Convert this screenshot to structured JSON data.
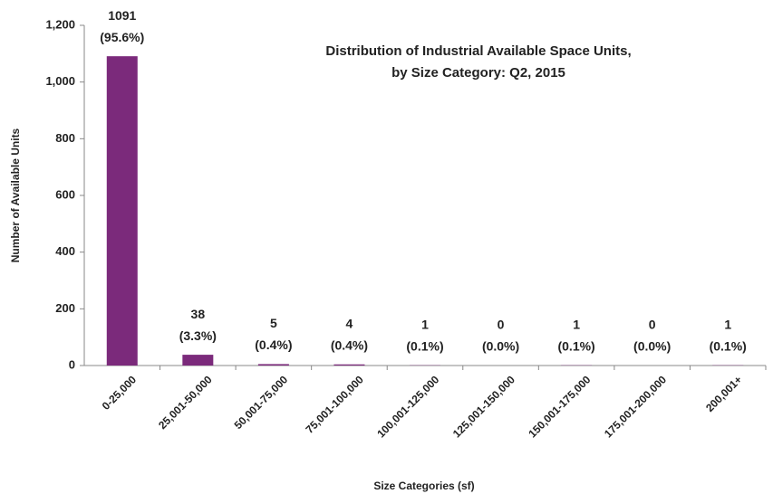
{
  "chart_data": {
    "type": "bar",
    "title": [
      "Distribution of Industrial Available Space Units,",
      "by Size Category: Q2, 2015"
    ],
    "x_label": "Size Categories (sf)",
    "y_label": "Number of Available Units",
    "categories": [
      "0-25,000",
      "25,001-50,000",
      "50,001-75,000",
      "75,001-100,000",
      "100,001-125,000",
      "125,001-150,000",
      "150,001-175,000",
      "175,001-200,000",
      "200,001+"
    ],
    "values": [
      1091,
      38,
      5,
      4,
      1,
      0,
      1,
      0,
      1
    ],
    "share_labels": [
      "(95.6%)",
      "(3.3%)",
      "(0.4%)",
      "(0.4%)",
      "(0.1%)",
      "(0.0%)",
      "(0.1%)",
      "(0.0%)",
      "(0.1%)"
    ],
    "color": "#7b2a7b",
    "ylim": [
      0,
      1200
    ],
    "yticks": [
      0,
      200,
      400,
      600,
      800,
      {
        "value": 1000,
        "label": "1,000"
      },
      {
        "value": 1200,
        "label": "1,200"
      }
    ],
    "grid": false
  }
}
